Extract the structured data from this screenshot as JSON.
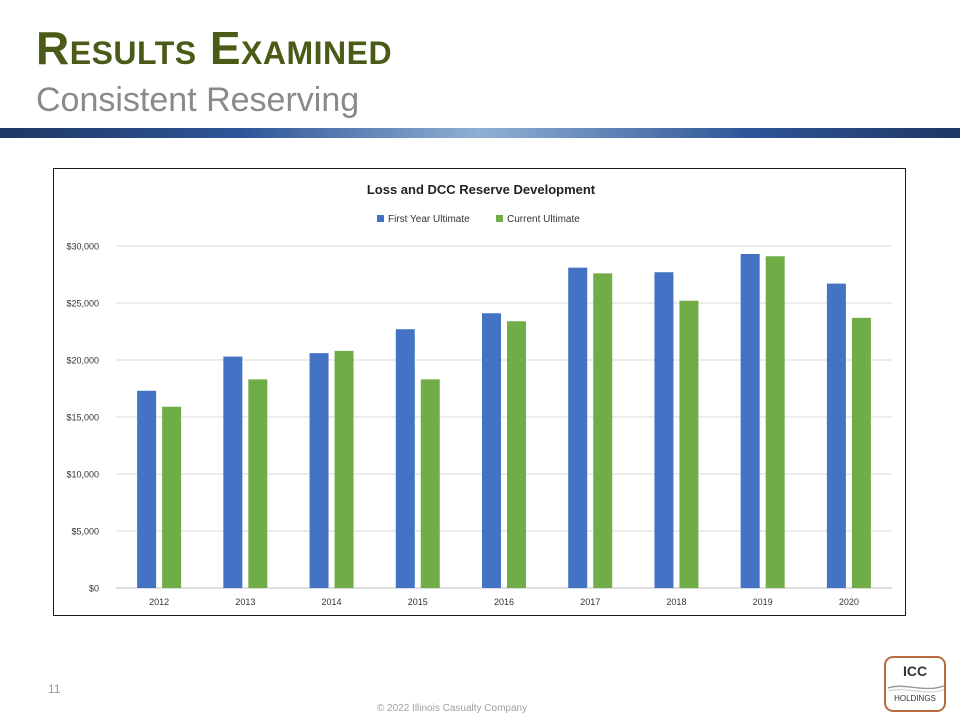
{
  "slide": {
    "title": "Results Examined",
    "subtitle": "Consistent Reserving",
    "page_number": "11",
    "footer": "© 2022 Illinois Casualty Company",
    "logo_top": "ICC",
    "logo_bottom": "HOLDINGS"
  },
  "colors": {
    "title": "#4a5a17",
    "series_1": "#4472c4",
    "series_2": "#70ad47",
    "logo_border": "#b86b3e"
  },
  "chart_data": {
    "type": "bar",
    "title": "Loss and DCC Reserve Development",
    "xlabel": "",
    "ylabel": "",
    "categories": [
      "2012",
      "2013",
      "2014",
      "2015",
      "2016",
      "2017",
      "2018",
      "2019",
      "2020"
    ],
    "series": [
      {
        "name": "First Year Ultimate",
        "color": "#4472c4",
        "values": [
          17300,
          20300,
          20600,
          22700,
          24100,
          28100,
          27700,
          29300,
          26700
        ]
      },
      {
        "name": "Current Ultimate",
        "color": "#70ad47",
        "values": [
          15900,
          18300,
          20800,
          18300,
          23400,
          27600,
          25200,
          29100,
          23700
        ]
      }
    ],
    "ylim": [
      0,
      30000
    ],
    "yticks": [
      0,
      5000,
      10000,
      15000,
      20000,
      25000,
      30000
    ],
    "ytick_labels": [
      "$0",
      "$5,000",
      "$10,000",
      "$15,000",
      "$20,000",
      "$25,000",
      "$30,000"
    ],
    "grid": true,
    "legend_position": "top"
  }
}
